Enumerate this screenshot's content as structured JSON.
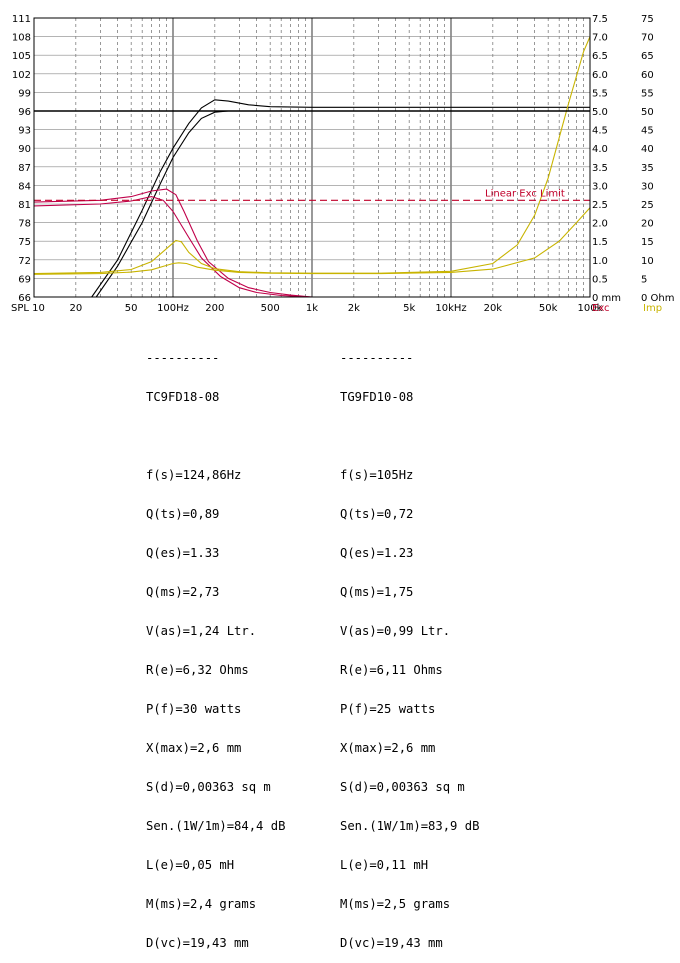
{
  "chart_data": {
    "type": "line",
    "x_scale": "log",
    "xlim": [
      10,
      100000
    ],
    "x_ticks": [
      {
        "v": 20,
        "label": "20"
      },
      {
        "v": 50,
        "label": "50"
      },
      {
        "v": 100,
        "label": "100Hz"
      },
      {
        "v": 200,
        "label": "200"
      },
      {
        "v": 500,
        "label": "500"
      },
      {
        "v": 1000,
        "label": "1k"
      },
      {
        "v": 2000,
        "label": "2k"
      },
      {
        "v": 5000,
        "label": "5k"
      },
      {
        "v": 10000,
        "label": "10kHz"
      },
      {
        "v": 20000,
        "label": "20k"
      },
      {
        "v": 50000,
        "label": "50k"
      },
      {
        "v": 100000,
        "label": "100k"
      }
    ],
    "x_start_label": "SPL 10",
    "spl_ticks": [
      111,
      108,
      105,
      102,
      99,
      96,
      93,
      90,
      87,
      84,
      81,
      78,
      75,
      72,
      69,
      66
    ],
    "exc_ticks": [
      "7.5",
      "7.0",
      "6.5",
      "6.0",
      "5.5",
      "5.0",
      "4.5",
      "4.0",
      "3.5",
      "3.0",
      "2.5",
      "2.0",
      "1.5",
      "1.0",
      "0.5",
      "0 mm"
    ],
    "exc_axis_label": "Exc",
    "imp_ticks": [
      "75",
      "70",
      "65",
      "60",
      "55",
      "50",
      "45",
      "40",
      "35",
      "30",
      "25",
      "20",
      "15",
      "10",
      "5",
      "0 Ohm"
    ],
    "imp_axis_label": "Imp",
    "linear_exc_label": "Linear Exc Limit",
    "linear_exc_level_mm": 2.6,
    "series": [
      {
        "color": "#000000",
        "axis": "spl",
        "points": [
          [
            26,
            66
          ],
          [
            40,
            72
          ],
          [
            60,
            80
          ],
          [
            80,
            86
          ],
          [
            100,
            90
          ],
          [
            130,
            94
          ],
          [
            160,
            96.5
          ],
          [
            200,
            97.8
          ],
          [
            250,
            97.6
          ],
          [
            350,
            97.0
          ],
          [
            500,
            96.7
          ],
          [
            1000,
            96.6
          ],
          [
            100000,
            96.6
          ]
        ]
      },
      {
        "color": "#000000",
        "axis": "spl",
        "points": [
          [
            28,
            66
          ],
          [
            40,
            71
          ],
          [
            60,
            78
          ],
          [
            80,
            84
          ],
          [
            100,
            88.5
          ],
          [
            130,
            92.5
          ],
          [
            160,
            94.8
          ],
          [
            200,
            95.8
          ],
          [
            250,
            96.0
          ],
          [
            400,
            96.0
          ],
          [
            100000,
            96.0
          ]
        ]
      },
      {
        "color": "#c0004a",
        "axis": "exc",
        "points": [
          [
            10,
            2.55
          ],
          [
            30,
            2.6
          ],
          [
            50,
            2.7
          ],
          [
            70,
            2.85
          ],
          [
            90,
            2.9
          ],
          [
            105,
            2.75
          ],
          [
            120,
            2.3
          ],
          [
            150,
            1.5
          ],
          [
            180,
            0.95
          ],
          [
            250,
            0.5
          ],
          [
            350,
            0.25
          ],
          [
            500,
            0.12
          ],
          [
            700,
            0.05
          ],
          [
            1000,
            0.0
          ],
          [
            1500,
            0.0
          ]
        ]
      },
      {
        "color": "#c0004a",
        "axis": "exc",
        "points": [
          [
            10,
            2.45
          ],
          [
            30,
            2.5
          ],
          [
            50,
            2.58
          ],
          [
            70,
            2.7
          ],
          [
            85,
            2.6
          ],
          [
            100,
            2.3
          ],
          [
            130,
            1.6
          ],
          [
            160,
            1.05
          ],
          [
            220,
            0.55
          ],
          [
            300,
            0.25
          ],
          [
            400,
            0.12
          ],
          [
            600,
            0.04
          ],
          [
            1000,
            0.0
          ],
          [
            2000,
            0.0
          ]
        ]
      },
      {
        "color": "#c8b400",
        "axis": "imp",
        "points": [
          [
            10,
            6.3
          ],
          [
            30,
            6.6
          ],
          [
            50,
            7.4
          ],
          [
            70,
            9.5
          ],
          [
            90,
            13
          ],
          [
            105,
            15.2
          ],
          [
            115,
            14.8
          ],
          [
            130,
            12
          ],
          [
            160,
            9
          ],
          [
            200,
            7.6
          ],
          [
            300,
            6.8
          ],
          [
            500,
            6.5
          ],
          [
            1000,
            6.4
          ],
          [
            3000,
            6.4
          ],
          [
            10000,
            6.9
          ],
          [
            20000,
            9
          ],
          [
            30000,
            14
          ],
          [
            40000,
            22
          ],
          [
            50000,
            32
          ],
          [
            70000,
            52
          ],
          [
            90000,
            66
          ],
          [
            100000,
            70
          ]
        ]
      },
      {
        "color": "#c8b400",
        "axis": "imp",
        "points": [
          [
            10,
            6.1
          ],
          [
            30,
            6.3
          ],
          [
            50,
            6.7
          ],
          [
            70,
            7.3
          ],
          [
            90,
            8.5
          ],
          [
            100,
            9
          ],
          [
            110,
            9.2
          ],
          [
            125,
            9
          ],
          [
            150,
            8
          ],
          [
            200,
            7.2
          ],
          [
            300,
            6.6
          ],
          [
            500,
            6.4
          ],
          [
            1000,
            6.3
          ],
          [
            3000,
            6.3
          ],
          [
            10000,
            6.6
          ],
          [
            20000,
            7.5
          ],
          [
            40000,
            10.5
          ],
          [
            60000,
            15
          ],
          [
            80000,
            20
          ],
          [
            100000,
            24
          ]
        ]
      }
    ]
  },
  "drivers": [
    {
      "divider": "----------",
      "name": "TC9FD18-08",
      "params": [
        "f(s)=124,86Hz",
        "Q(ts)=0,89",
        "Q(es)=1.33",
        "Q(ms)=2,73",
        "V(as)=1,24 Ltr.",
        "R(e)=6,32 Ohms",
        "P(f)=30 watts",
        "X(max)=2,6 mm",
        "S(d)=0,00363 sq m",
        "Sen.(1W/1m)=84,4 dB",
        "L(e)=0,05 mH",
        "M(ms)=2,4 grams",
        "D(vc)=19,43 mm"
      ]
    },
    {
      "divider": "----------",
      "name": "TG9FD10-08",
      "params": [
        "f(s)=105Hz",
        "Q(ts)=0,72",
        "Q(es)=1.23",
        "Q(ms)=1,75",
        "V(as)=0,99 Ltr.",
        "R(e)=6,11 Ohms",
        "P(f)=25 watts",
        "X(max)=2,6 mm",
        "S(d)=0,00363 sq m",
        "Sen.(1W/1m)=83,9 dB",
        "L(e)=0,11 mH",
        "M(ms)=2,5 grams",
        "D(vc)=19,43 mm"
      ]
    }
  ]
}
